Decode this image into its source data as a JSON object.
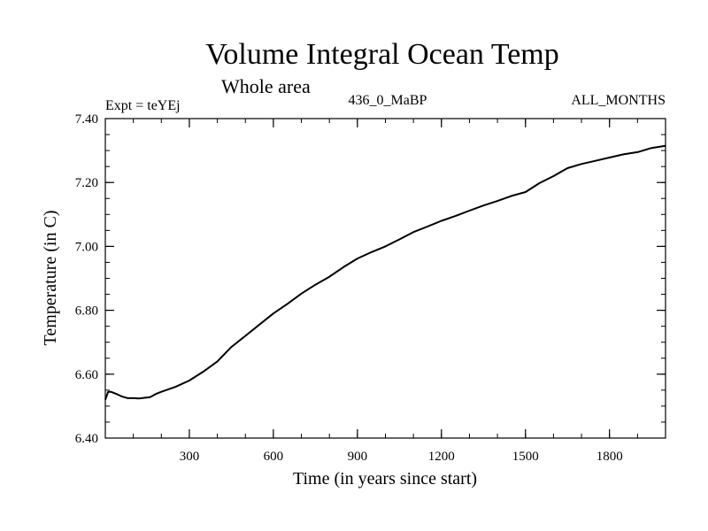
{
  "chart_data": {
    "type": "line",
    "title": "Volume Integral Ocean Temp",
    "subtitle": "Whole area",
    "info_left": "Expt = teYEj",
    "info_center": "436_0_MaBP",
    "info_right": "ALL_MONTHS",
    "xlabel": "Time (in years since start)",
    "ylabel": "Temperature (in C)",
    "xlim": [
      0,
      2000
    ],
    "ylim": [
      6.4,
      7.4
    ],
    "xticks": [
      300,
      600,
      900,
      1200,
      1500,
      1800
    ],
    "xtick_labels": [
      "300",
      "600",
      "900",
      "1200",
      "1500",
      "1800"
    ],
    "yticks": [
      6.4,
      6.6,
      6.8,
      7.0,
      7.2,
      7.4
    ],
    "ytick_labels": [
      "6.40",
      "6.60",
      "6.80",
      "7.00",
      "7.20",
      "7.40"
    ],
    "series": [
      {
        "name": "Volume Integral Ocean Temp",
        "x": [
          0,
          10,
          20,
          40,
          60,
          80,
          100,
          120,
          140,
          160,
          180,
          200,
          250,
          300,
          350,
          400,
          450,
          500,
          550,
          600,
          650,
          700,
          750,
          800,
          850,
          900,
          950,
          1000,
          1050,
          1100,
          1150,
          1200,
          1250,
          1300,
          1350,
          1400,
          1450,
          1500,
          1550,
          1600,
          1650,
          1700,
          1750,
          1800,
          1850,
          1900,
          1950,
          2000
        ],
        "values": [
          6.52,
          6.545,
          6.545,
          6.538,
          6.53,
          6.525,
          6.525,
          6.524,
          6.526,
          6.528,
          6.538,
          6.545,
          6.56,
          6.58,
          6.608,
          6.64,
          6.685,
          6.72,
          6.755,
          6.79,
          6.82,
          6.852,
          6.88,
          6.905,
          6.935,
          6.962,
          6.982,
          7.0,
          7.022,
          7.045,
          7.062,
          7.08,
          7.095,
          7.112,
          7.128,
          7.142,
          7.158,
          7.17,
          7.198,
          7.22,
          7.245,
          7.258,
          7.268,
          7.278,
          7.288,
          7.295,
          7.308,
          7.315
        ]
      }
    ]
  }
}
